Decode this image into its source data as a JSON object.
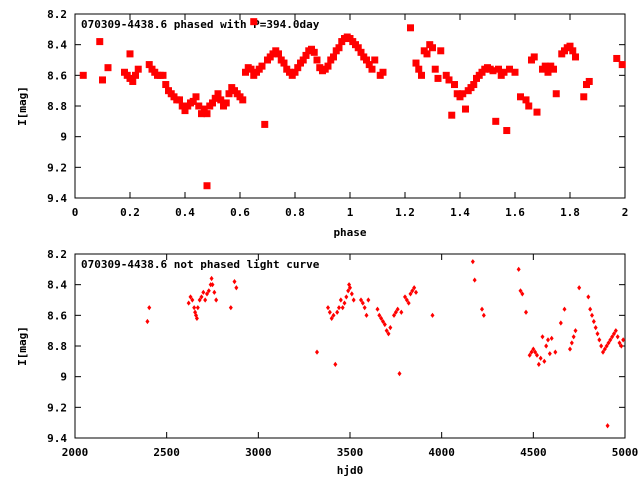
{
  "chart_data": [
    {
      "type": "scatter",
      "title": "070309-4438.6 phased with P=394.0day",
      "xlabel": "phase",
      "ylabel": "I[mag]",
      "xlim": [
        0,
        2
      ],
      "ylim": [
        8.2,
        9.4
      ],
      "y_inverted": true,
      "xticks": [
        "0",
        "0.2",
        "0.4",
        "0.6",
        "0.8",
        "1",
        "1.2",
        "1.4",
        "1.6",
        "1.8",
        "2"
      ],
      "yticks": [
        "8.2",
        "8.4",
        "8.6",
        "8.8",
        "9",
        "9.2",
        "9.4"
      ],
      "marker_color": "#ff0000",
      "series": [
        {
          "points": [
            [
              0.03,
              8.6
            ],
            [
              0.09,
              8.38
            ],
            [
              0.1,
              8.63
            ],
            [
              0.12,
              8.55
            ],
            [
              0.18,
              8.58
            ],
            [
              0.19,
              8.6
            ],
            [
              0.2,
              8.62
            ],
            [
              0.2,
              8.46
            ],
            [
              0.21,
              8.64
            ],
            [
              0.22,
              8.6
            ],
            [
              0.23,
              8.56
            ],
            [
              0.27,
              8.53
            ],
            [
              0.28,
              8.56
            ],
            [
              0.29,
              8.58
            ],
            [
              0.3,
              8.6
            ],
            [
              0.31,
              8.6
            ],
            [
              0.32,
              8.6
            ],
            [
              0.33,
              8.66
            ],
            [
              0.34,
              8.7
            ],
            [
              0.35,
              8.72
            ],
            [
              0.36,
              8.74
            ],
            [
              0.37,
              8.76
            ],
            [
              0.38,
              8.76
            ],
            [
              0.39,
              8.8
            ],
            [
              0.4,
              8.83
            ],
            [
              0.41,
              8.8
            ],
            [
              0.42,
              8.78
            ],
            [
              0.43,
              8.77
            ],
            [
              0.44,
              8.74
            ],
            [
              0.45,
              8.8
            ],
            [
              0.46,
              8.85
            ],
            [
              0.47,
              8.82
            ],
            [
              0.48,
              8.85
            ],
            [
              0.48,
              9.32
            ],
            [
              0.49,
              8.8
            ],
            [
              0.5,
              8.78
            ],
            [
              0.51,
              8.75
            ],
            [
              0.52,
              8.72
            ],
            [
              0.53,
              8.76
            ],
            [
              0.54,
              8.8
            ],
            [
              0.55,
              8.78
            ],
            [
              0.56,
              8.72
            ],
            [
              0.57,
              8.68
            ],
            [
              0.58,
              8.7
            ],
            [
              0.59,
              8.72
            ],
            [
              0.6,
              8.74
            ],
            [
              0.61,
              8.76
            ],
            [
              0.62,
              8.58
            ],
            [
              0.63,
              8.55
            ],
            [
              0.64,
              8.56
            ],
            [
              0.65,
              8.6
            ],
            [
              0.65,
              8.25
            ],
            [
              0.66,
              8.58
            ],
            [
              0.67,
              8.56
            ],
            [
              0.68,
              8.54
            ],
            [
              0.69,
              8.92
            ],
            [
              0.7,
              8.5
            ],
            [
              0.71,
              8.48
            ],
            [
              0.72,
              8.46
            ],
            [
              0.73,
              8.44
            ],
            [
              0.74,
              8.46
            ],
            [
              0.75,
              8.5
            ],
            [
              0.76,
              8.52
            ],
            [
              0.77,
              8.56
            ],
            [
              0.78,
              8.58
            ],
            [
              0.79,
              8.6
            ],
            [
              0.8,
              8.58
            ],
            [
              0.81,
              8.55
            ],
            [
              0.82,
              8.52
            ],
            [
              0.83,
              8.5
            ],
            [
              0.84,
              8.47
            ],
            [
              0.85,
              8.44
            ],
            [
              0.86,
              8.43
            ],
            [
              0.87,
              8.45
            ],
            [
              0.88,
              8.5
            ],
            [
              0.89,
              8.55
            ],
            [
              0.9,
              8.57
            ],
            [
              0.91,
              8.56
            ],
            [
              0.92,
              8.54
            ],
            [
              0.93,
              8.5
            ],
            [
              0.94,
              8.48
            ],
            [
              0.95,
              8.44
            ],
            [
              0.96,
              8.42
            ],
            [
              0.97,
              8.38
            ],
            [
              0.98,
              8.36
            ],
            [
              0.99,
              8.35
            ],
            [
              1.0,
              8.36
            ],
            [
              1.01,
              8.38
            ],
            [
              1.02,
              8.4
            ],
            [
              1.03,
              8.42
            ],
            [
              1.04,
              8.45
            ],
            [
              1.05,
              8.48
            ],
            [
              1.06,
              8.5
            ],
            [
              1.07,
              8.53
            ],
            [
              1.08,
              8.56
            ],
            [
              1.09,
              8.5
            ],
            [
              1.11,
              8.6
            ],
            [
              1.12,
              8.58
            ],
            [
              1.22,
              8.29
            ],
            [
              1.24,
              8.52
            ],
            [
              1.25,
              8.56
            ],
            [
              1.26,
              8.6
            ],
            [
              1.27,
              8.44
            ],
            [
              1.28,
              8.46
            ],
            [
              1.29,
              8.4
            ],
            [
              1.3,
              8.42
            ],
            [
              1.31,
              8.56
            ],
            [
              1.32,
              8.62
            ],
            [
              1.33,
              8.44
            ],
            [
              1.35,
              8.6
            ],
            [
              1.36,
              8.63
            ],
            [
              1.37,
              8.86
            ],
            [
              1.38,
              8.66
            ],
            [
              1.39,
              8.72
            ],
            [
              1.4,
              8.74
            ],
            [
              1.41,
              8.72
            ],
            [
              1.42,
              8.82
            ],
            [
              1.43,
              8.7
            ],
            [
              1.44,
              8.68
            ],
            [
              1.45,
              8.66
            ],
            [
              1.46,
              8.62
            ],
            [
              1.47,
              8.6
            ],
            [
              1.48,
              8.58
            ],
            [
              1.49,
              8.56
            ],
            [
              1.5,
              8.55
            ],
            [
              1.51,
              8.56
            ],
            [
              1.52,
              8.57
            ],
            [
              1.53,
              8.9
            ],
            [
              1.54,
              8.56
            ],
            [
              1.55,
              8.6
            ],
            [
              1.56,
              8.58
            ],
            [
              1.57,
              8.96
            ],
            [
              1.58,
              8.56
            ],
            [
              1.6,
              8.58
            ],
            [
              1.62,
              8.74
            ],
            [
              1.64,
              8.76
            ],
            [
              1.65,
              8.8
            ],
            [
              1.66,
              8.5
            ],
            [
              1.67,
              8.48
            ],
            [
              1.68,
              8.84
            ],
            [
              1.7,
              8.56
            ],
            [
              1.71,
              8.54
            ],
            [
              1.72,
              8.58
            ],
            [
              1.73,
              8.54
            ],
            [
              1.74,
              8.56
            ],
            [
              1.75,
              8.72
            ],
            [
              1.77,
              8.46
            ],
            [
              1.78,
              8.44
            ],
            [
              1.79,
              8.42
            ],
            [
              1.8,
              8.41
            ],
            [
              1.81,
              8.44
            ],
            [
              1.82,
              8.48
            ],
            [
              1.85,
              8.74
            ],
            [
              1.86,
              8.66
            ],
            [
              1.87,
              8.64
            ],
            [
              1.97,
              8.49
            ],
            [
              1.99,
              8.53
            ]
          ]
        }
      ]
    },
    {
      "type": "scatter",
      "title": "070309-4438.6 not phased light curve",
      "xlabel": "hjd0",
      "ylabel": "I[mag]",
      "xlim": [
        2000,
        5000
      ],
      "ylim": [
        8.2,
        9.4
      ],
      "y_inverted": true,
      "xticks": [
        "2000",
        "2500",
        "3000",
        "3500",
        "4000",
        "4500",
        "5000"
      ],
      "yticks": [
        "8.2",
        "8.4",
        "8.6",
        "8.8",
        "9",
        "9.2",
        "9.4"
      ],
      "marker_color": "#ff0000",
      "series": [
        {
          "points": [
            [
              2395,
              8.64
            ],
            [
              2405,
              8.55
            ],
            [
              2620,
              8.52
            ],
            [
              2630,
              8.48
            ],
            [
              2640,
              8.5
            ],
            [
              2650,
              8.55
            ],
            [
              2655,
              8.58
            ],
            [
              2660,
              8.6
            ],
            [
              2665,
              8.62
            ],
            [
              2670,
              8.55
            ],
            [
              2680,
              8.5
            ],
            [
              2690,
              8.48
            ],
            [
              2700,
              8.45
            ],
            [
              2710,
              8.5
            ],
            [
              2720,
              8.46
            ],
            [
              2730,
              8.44
            ],
            [
              2740,
              8.4
            ],
            [
              2745,
              8.36
            ],
            [
              2750,
              8.4
            ],
            [
              2760,
              8.45
            ],
            [
              2770,
              8.5
            ],
            [
              2850,
              8.55
            ],
            [
              2870,
              8.38
            ],
            [
              2880,
              8.42
            ],
            [
              3320,
              8.84
            ],
            [
              3380,
              8.55
            ],
            [
              3390,
              8.58
            ],
            [
              3400,
              8.62
            ],
            [
              3410,
              8.6
            ],
            [
              3420,
              8.92
            ],
            [
              3430,
              8.58
            ],
            [
              3440,
              8.55
            ],
            [
              3450,
              8.5
            ],
            [
              3460,
              8.55
            ],
            [
              3470,
              8.52
            ],
            [
              3480,
              8.48
            ],
            [
              3490,
              8.44
            ],
            [
              3495,
              8.4
            ],
            [
              3500,
              8.42
            ],
            [
              3510,
              8.46
            ],
            [
              3520,
              8.5
            ],
            [
              3560,
              8.5
            ],
            [
              3570,
              8.52
            ],
            [
              3580,
              8.55
            ],
            [
              3590,
              8.6
            ],
            [
              3600,
              8.5
            ],
            [
              3650,
              8.56
            ],
            [
              3660,
              8.6
            ],
            [
              3670,
              8.62
            ],
            [
              3680,
              8.64
            ],
            [
              3690,
              8.66
            ],
            [
              3700,
              8.7
            ],
            [
              3710,
              8.72
            ],
            [
              3720,
              8.68
            ],
            [
              3740,
              8.6
            ],
            [
              3750,
              8.58
            ],
            [
              3760,
              8.56
            ],
            [
              3770,
              8.98
            ],
            [
              3780,
              8.58
            ],
            [
              3800,
              8.48
            ],
            [
              3810,
              8.5
            ],
            [
              3820,
              8.52
            ],
            [
              3830,
              8.46
            ],
            [
              3840,
              8.44
            ],
            [
              3850,
              8.42
            ],
            [
              3860,
              8.45
            ],
            [
              3950,
              8.6
            ],
            [
              4170,
              8.25
            ],
            [
              4180,
              8.37
            ],
            [
              4220,
              8.56
            ],
            [
              4230,
              8.6
            ],
            [
              4420,
              8.3
            ],
            [
              4430,
              8.44
            ],
            [
              4440,
              8.46
            ],
            [
              4460,
              8.58
            ],
            [
              4480,
              8.86
            ],
            [
              4490,
              8.84
            ],
            [
              4500,
              8.82
            ],
            [
              4510,
              8.84
            ],
            [
              4520,
              8.86
            ],
            [
              4530,
              8.92
            ],
            [
              4540,
              8.88
            ],
            [
              4550,
              8.74
            ],
            [
              4560,
              8.9
            ],
            [
              4570,
              8.8
            ],
            [
              4580,
              8.76
            ],
            [
              4590,
              8.85
            ],
            [
              4600,
              8.75
            ],
            [
              4620,
              8.84
            ],
            [
              4650,
              8.65
            ],
            [
              4670,
              8.56
            ],
            [
              4700,
              8.82
            ],
            [
              4710,
              8.78
            ],
            [
              4720,
              8.74
            ],
            [
              4730,
              8.7
            ],
            [
              4750,
              8.42
            ],
            [
              4800,
              8.48
            ],
            [
              4810,
              8.56
            ],
            [
              4820,
              8.6
            ],
            [
              4830,
              8.64
            ],
            [
              4840,
              8.68
            ],
            [
              4850,
              8.72
            ],
            [
              4860,
              8.76
            ],
            [
              4870,
              8.8
            ],
            [
              4880,
              8.84
            ],
            [
              4890,
              8.82
            ],
            [
              4900,
              8.8
            ],
            [
              4905,
              9.32
            ],
            [
              4910,
              8.78
            ],
            [
              4920,
              8.76
            ],
            [
              4930,
              8.74
            ],
            [
              4940,
              8.72
            ],
            [
              4950,
              8.7
            ],
            [
              4960,
              8.74
            ],
            [
              4970,
              8.78
            ],
            [
              4980,
              8.8
            ],
            [
              4990,
              8.76
            ]
          ]
        }
      ]
    }
  ]
}
